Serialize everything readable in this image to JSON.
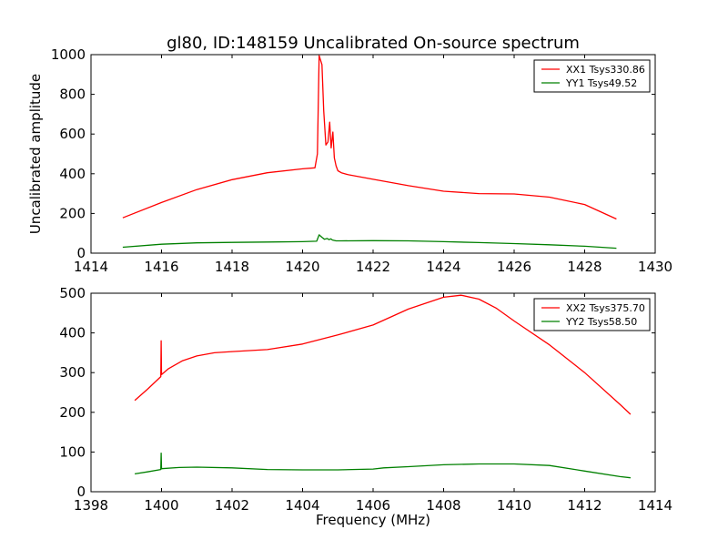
{
  "chart_data": [
    {
      "type": "line",
      "title": "gl80, ID:148159 Uncalibrated On-source spectrum",
      "xlabel": "",
      "ylabel": "Uncalibrated amplitude",
      "xlim": [
        1414,
        1430
      ],
      "ylim": [
        0,
        1000
      ],
      "xticks": [
        1414,
        1416,
        1418,
        1420,
        1422,
        1424,
        1426,
        1428,
        1430
      ],
      "yticks": [
        0,
        200,
        400,
        600,
        800,
        1000
      ],
      "legend_position": "top-right",
      "series": [
        {
          "name": "XX1 Tsys330.86",
          "color": "#ff0000",
          "x": [
            1414.9,
            1416,
            1417,
            1418,
            1419,
            1420,
            1420.35,
            1420.42,
            1420.47,
            1420.55,
            1420.6,
            1420.66,
            1420.72,
            1420.77,
            1420.81,
            1420.86,
            1420.9,
            1420.95,
            1421.0,
            1421.1,
            1421.3,
            1422,
            1423,
            1424,
            1425,
            1426,
            1427,
            1428,
            1428.9
          ],
          "y": [
            178,
            255,
            320,
            370,
            405,
            425,
            430,
            500,
            995,
            950,
            720,
            545,
            560,
            660,
            530,
            610,
            480,
            440,
            415,
            405,
            395,
            372,
            340,
            312,
            300,
            298,
            282,
            245,
            172
          ]
        },
        {
          "name": "YY1 Tsys49.52",
          "color": "#008000",
          "x": [
            1414.9,
            1416,
            1417,
            1418,
            1419,
            1420,
            1420.4,
            1420.47,
            1420.55,
            1420.62,
            1420.7,
            1420.75,
            1420.8,
            1420.85,
            1420.95,
            1421.1,
            1422,
            1423,
            1424,
            1425,
            1426,
            1427,
            1428,
            1428.9
          ],
          "y": [
            30,
            45,
            52,
            54,
            56,
            58,
            60,
            92,
            80,
            70,
            74,
            68,
            72,
            66,
            62,
            62,
            63,
            62,
            58,
            53,
            48,
            42,
            35,
            25
          ]
        }
      ]
    },
    {
      "type": "line",
      "title": "",
      "xlabel": "Frequency (MHz)",
      "ylabel": "",
      "xlim": [
        1398,
        1414
      ],
      "ylim": [
        0,
        500
      ],
      "xticks": [
        1398,
        1400,
        1402,
        1404,
        1406,
        1408,
        1410,
        1412,
        1414
      ],
      "yticks": [
        0,
        100,
        200,
        300,
        400,
        500
      ],
      "legend_position": "top-right",
      "series": [
        {
          "name": "XX2 Tsys375.70",
          "color": "#ff0000",
          "x": [
            1399.24,
            1399.6,
            1399.98,
            1399.99,
            1400.0,
            1400.2,
            1400.6,
            1401,
            1401.5,
            1402,
            1403,
            1404,
            1405,
            1406,
            1407,
            1408,
            1408.5,
            1409,
            1409.5,
            1410,
            1411,
            1412,
            1413,
            1413.3
          ],
          "y": [
            230,
            258,
            290,
            380,
            295,
            310,
            330,
            342,
            350,
            353,
            358,
            372,
            395,
            420,
            460,
            490,
            495,
            485,
            462,
            430,
            370,
            300,
            220,
            195
          ]
        },
        {
          "name": "YY2 Tsys58.50",
          "color": "#008000",
          "x": [
            1399.24,
            1399.6,
            1399.98,
            1399.99,
            1400.0,
            1400.5,
            1401,
            1402,
            1403,
            1404,
            1405,
            1406,
            1406.3,
            1407,
            1408,
            1409,
            1410,
            1411,
            1412,
            1413,
            1413.3
          ],
          "y": [
            45,
            50,
            56,
            97,
            58,
            61,
            62,
            60,
            56,
            55,
            55,
            57,
            60,
            63,
            68,
            70,
            70,
            66,
            52,
            38,
            35
          ]
        }
      ]
    }
  ]
}
